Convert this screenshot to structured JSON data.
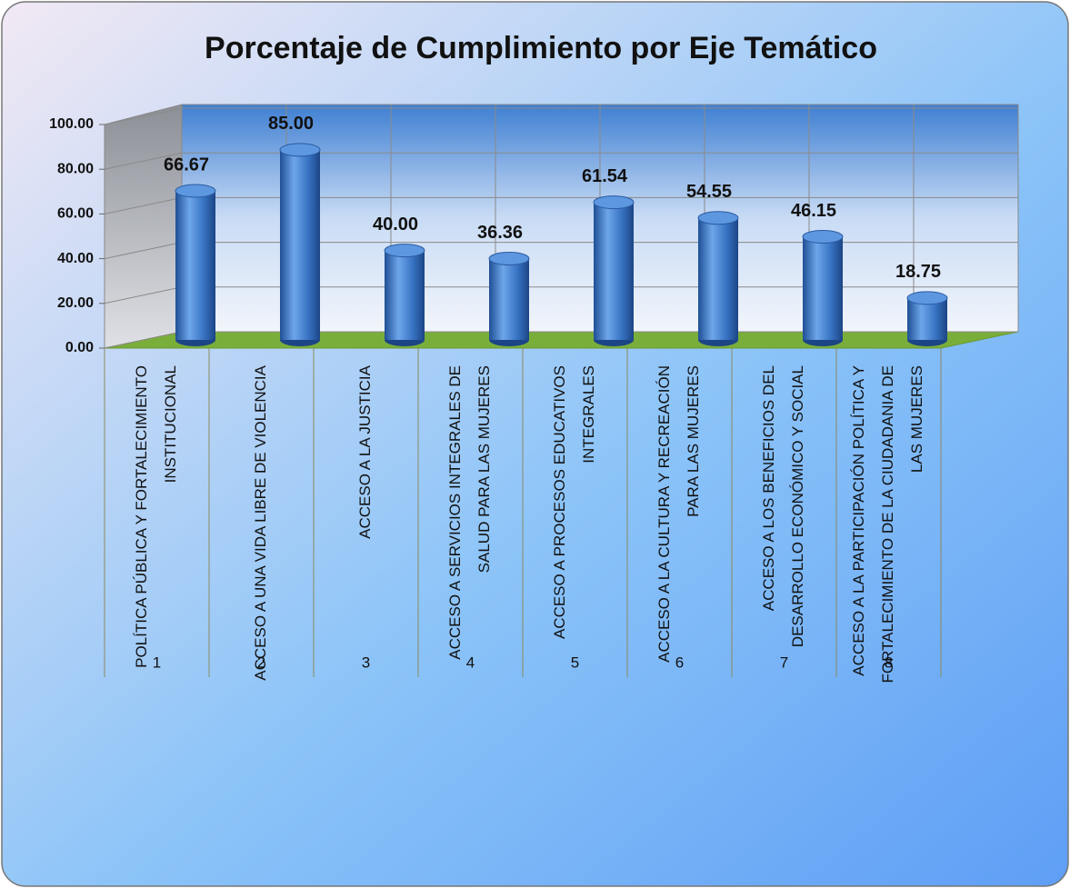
{
  "chart_data": {
    "type": "bar",
    "title": "Porcentaje de Cumplimiento por Eje Temático",
    "categories": [
      [
        "POLÍTICA PÚBLICA Y FORTALECIMIENTO",
        "INSTITUCIONAL"
      ],
      [
        "ACCESO A UNA VIDA LIBRE DE VIOLENCIA"
      ],
      [
        "ACCESO A LA JUSTICIA"
      ],
      [
        "ACCESO A SERVICIOS INTEGRALES DE",
        "SALUD PARA LAS MUJERES"
      ],
      [
        "ACCESO A PROCESOS EDUCATIVOS",
        "INTEGRALES"
      ],
      [
        "ACCESO A LA CULTURA Y RECREACIÓN",
        "PARA LAS MUJERES"
      ],
      [
        "ACCESO A LOS BENEFICIOS DEL",
        "DESARROLLO ECONÓMICO Y SOCIAL"
      ],
      [
        "ACCESO A LA PARTICIPACIÓN POLÍTICA Y",
        "FORTALECIMIENTO DE LA CIUDADANIA DE",
        "LAS MUJERES"
      ]
    ],
    "category_numbers": [
      "1",
      "2",
      "3",
      "4",
      "5",
      "6",
      "7",
      "8"
    ],
    "values": [
      66.67,
      85,
      40,
      36.36,
      61.54,
      54.55,
      46.15,
      18.75
    ],
    "value_labels": [
      "66.67",
      "85.00",
      "40.00",
      "36.36",
      "61.54",
      "54.55",
      "46.15",
      "18.75"
    ],
    "color": "#3a78c8",
    "ylim": [
      0,
      100
    ],
    "yticks": [
      {
        "value": 0,
        "label": "0.00"
      },
      {
        "value": 20,
        "label": "20.00"
      },
      {
        "value": 40,
        "label": "40.00"
      },
      {
        "value": 60,
        "label": "60.00"
      },
      {
        "value": 80,
        "label": "80.00"
      },
      {
        "value": 100,
        "label": "100.00"
      }
    ],
    "grid": true
  }
}
